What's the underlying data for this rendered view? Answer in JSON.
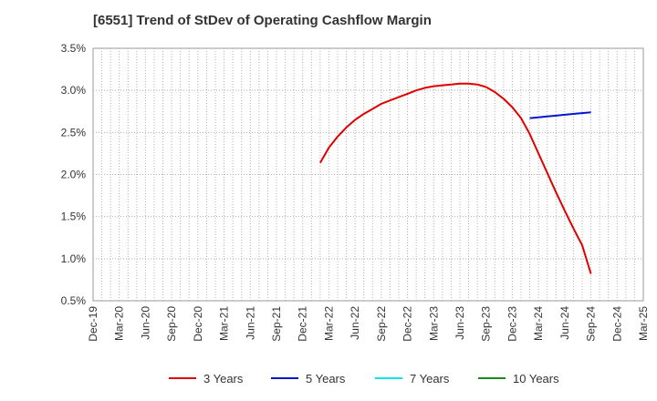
{
  "title": "[6551]  Trend of StDev of Operating Cashflow Margin",
  "chart_data": {
    "type": "line",
    "title": "[6551]  Trend of StDev of Operating Cashflow Margin",
    "xlabel": "",
    "ylabel": "",
    "x_ticks": [
      "Dec-19",
      "Mar-20",
      "Jun-20",
      "Sep-20",
      "Dec-20",
      "Mar-21",
      "Jun-21",
      "Sep-21",
      "Dec-21",
      "Mar-22",
      "Jun-22",
      "Sep-22",
      "Dec-22",
      "Mar-23",
      "Jun-23",
      "Sep-23",
      "Dec-23",
      "Mar-24",
      "Jun-24",
      "Sep-24",
      "Dec-24",
      "Mar-25"
    ],
    "y_ticks": [
      "0.5%",
      "1.0%",
      "1.5%",
      "2.0%",
      "2.5%",
      "3.0%",
      "3.5%"
    ],
    "ylim": [
      0.5,
      3.5
    ],
    "grid": true,
    "legend_position": "bottom",
    "series": [
      {
        "name": "3 Years",
        "color": "#e00000",
        "points": [
          [
            "Feb-22",
            2.14
          ],
          [
            "Mar-22",
            2.32
          ],
          [
            "Apr-22",
            2.45
          ],
          [
            "May-22",
            2.56
          ],
          [
            "Jun-22",
            2.65
          ],
          [
            "Jul-22",
            2.72
          ],
          [
            "Aug-22",
            2.78
          ],
          [
            "Sep-22",
            2.84
          ],
          [
            "Oct-22",
            2.88
          ],
          [
            "Nov-22",
            2.92
          ],
          [
            "Dec-22",
            2.96
          ],
          [
            "Jan-23",
            3.0
          ],
          [
            "Feb-23",
            3.03
          ],
          [
            "Mar-23",
            3.05
          ],
          [
            "Apr-23",
            3.06
          ],
          [
            "May-23",
            3.07
          ],
          [
            "Jun-23",
            3.08
          ],
          [
            "Jul-23",
            3.08
          ],
          [
            "Aug-23",
            3.07
          ],
          [
            "Sep-23",
            3.04
          ],
          [
            "Oct-23",
            2.98
          ],
          [
            "Nov-23",
            2.9
          ],
          [
            "Dec-23",
            2.8
          ],
          [
            "Jan-24",
            2.67
          ],
          [
            "Feb-24",
            2.48
          ],
          [
            "Mar-24",
            2.25
          ],
          [
            "Apr-24",
            2.02
          ],
          [
            "May-24",
            1.79
          ],
          [
            "Jun-24",
            1.57
          ],
          [
            "Jul-24",
            1.36
          ],
          [
            "Aug-24",
            1.16
          ],
          [
            "Sep-24",
            0.82
          ]
        ]
      },
      {
        "name": "5 Years",
        "color": "#0018cc",
        "points": [
          [
            "Feb-24",
            2.67
          ],
          [
            "Mar-24",
            2.68
          ],
          [
            "Apr-24",
            2.69
          ],
          [
            "May-24",
            2.7
          ],
          [
            "Jun-24",
            2.71
          ],
          [
            "Jul-24",
            2.72
          ],
          [
            "Aug-24",
            2.73
          ],
          [
            "Sep-24",
            2.74
          ]
        ]
      },
      {
        "name": "7 Years",
        "color": "#00e5ee",
        "points": []
      },
      {
        "name": "10 Years",
        "color": "#1a8a1a",
        "points": []
      }
    ]
  }
}
